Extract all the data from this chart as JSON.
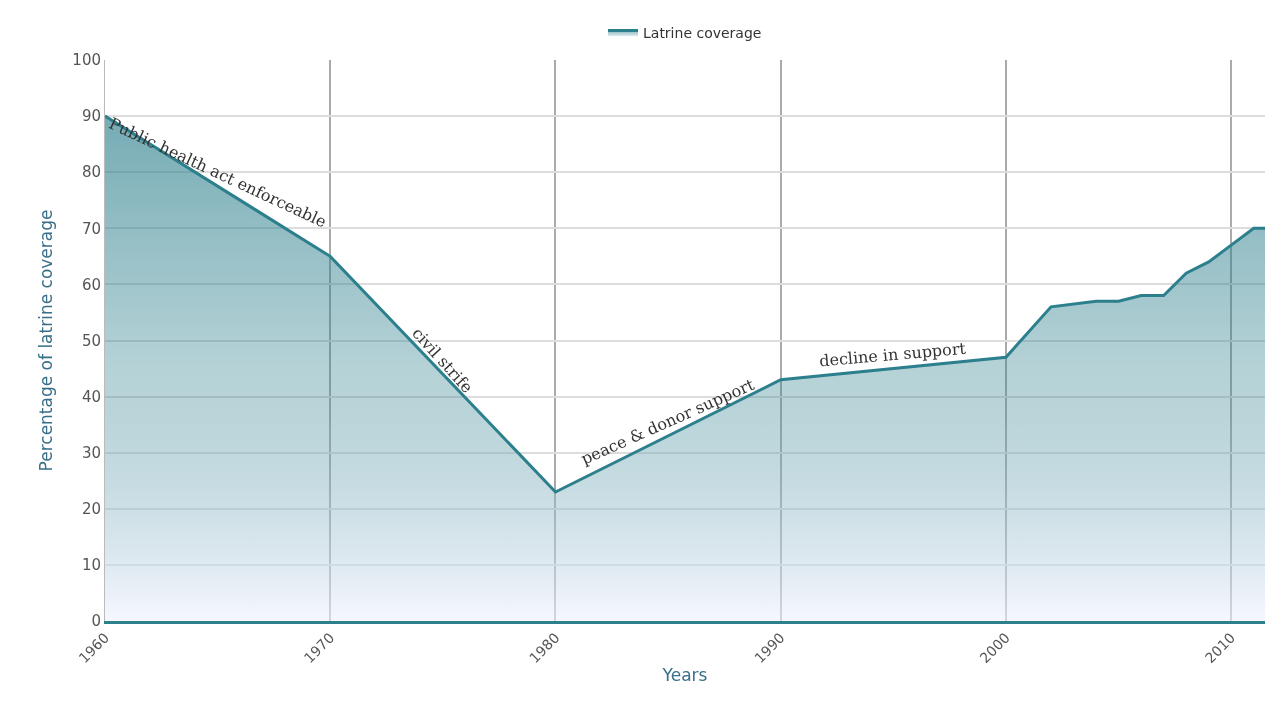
{
  "chart_data": {
    "type": "area",
    "xlabel": "Years",
    "ylabel": "Percentage of latrine coverage",
    "x": [
      1960,
      1970,
      1980,
      1990,
      2000,
      2002,
      2004,
      2005,
      2006,
      2007,
      2008,
      2009,
      2010,
      2011,
      2011.5
    ],
    "series": [
      {
        "name": "Latrine coverage",
        "color": "#2c7f8c",
        "values": [
          90,
          65,
          23,
          43,
          47,
          56,
          57,
          57,
          58,
          58,
          62,
          64,
          67,
          70,
          70
        ]
      }
    ],
    "xlim": [
      1960,
      2011.5
    ],
    "xticks": [
      1960,
      1970,
      1980,
      1990,
      2000,
      2010
    ],
    "ylim": [
      0,
      100
    ],
    "yticks": [
      0,
      10,
      20,
      30,
      40,
      50,
      60,
      70,
      80,
      90,
      100
    ],
    "grid": true,
    "legend": "top",
    "annotations": [
      {
        "text": "Public health act enforceable",
        "x": 1965,
        "y": 77.5
      },
      {
        "text": "civil strife",
        "x": 1975,
        "y": 44
      },
      {
        "text": "peace & donor support",
        "x": 1985,
        "y": 33
      },
      {
        "text": "decline in support",
        "x": 1995,
        "y": 45
      }
    ]
  }
}
